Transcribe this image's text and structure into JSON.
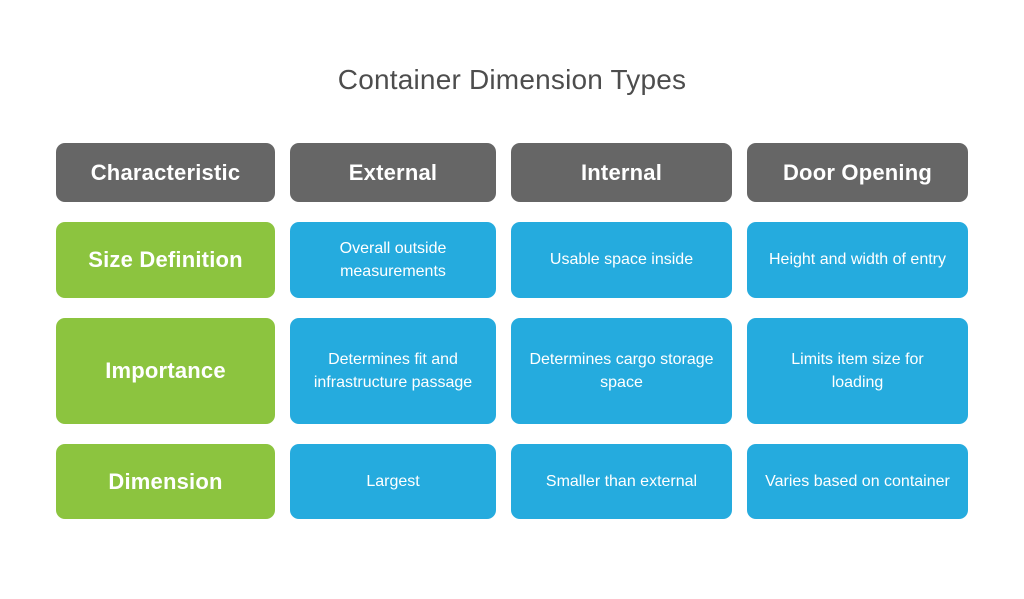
{
  "title": "Container Dimension Types",
  "colors": {
    "header_bg": "#666666",
    "label_bg": "#8CC43F",
    "cell_bg": "#25ABDE",
    "cell_text": "#FFFFFF",
    "title_color": "#4D4D4D",
    "page_bg": "#FFFFFF"
  },
  "table": {
    "columns": [
      "Characteristic",
      "External",
      "Internal",
      "Door Opening"
    ],
    "rows": [
      {
        "label": "Size Definition",
        "cells": [
          "Overall outside measurements",
          "Usable space inside",
          "Height and width of entry"
        ]
      },
      {
        "label": "Importance",
        "cells": [
          "Determines fit and infrastructure passage",
          "Determines cargo storage space",
          "Limits item size for loading"
        ]
      },
      {
        "label": "Dimension",
        "cells": [
          "Largest",
          "Smaller than external",
          "Varies based on container"
        ]
      }
    ]
  }
}
